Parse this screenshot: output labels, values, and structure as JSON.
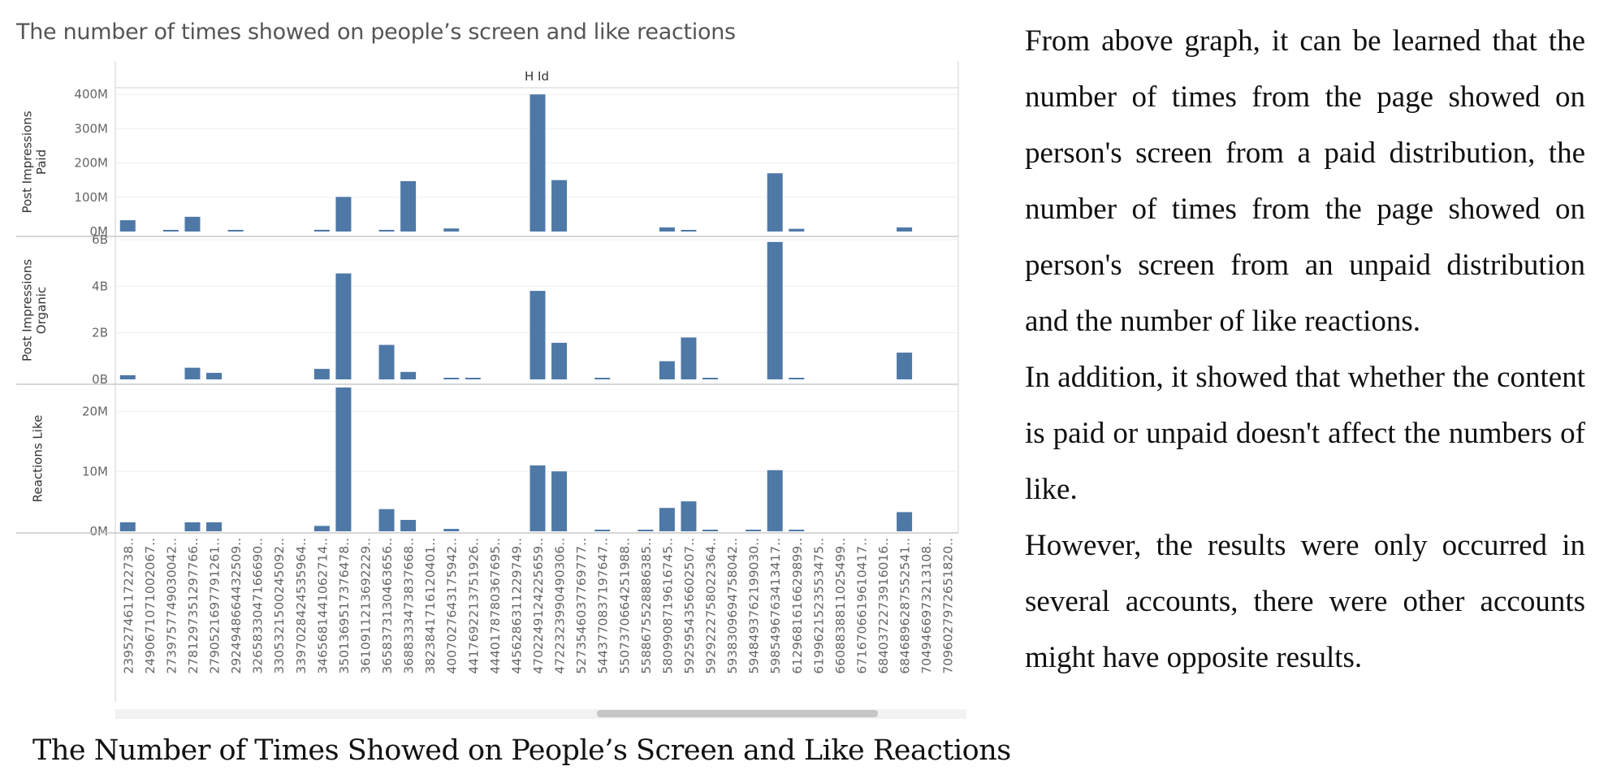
{
  "chart_data": {
    "type": "bar",
    "title": "The number of times showed on people’s screen and like reactions",
    "column_header": "H Id",
    "categories": [
      "2395274611722738..",
      "2490671071002067..",
      "2739757749030042..",
      "2781297351297766..",
      "2790521697791261..",
      "2924948664432509..",
      "3265833047166690..",
      "3305321500245092..",
      "3397028424535964..",
      "3465681441062714..",
      "3501369517376478..",
      "3610911213692229..",
      "3658373130463656..",
      "3688333473837668..",
      "3823841716120401..",
      "4007027643175942..",
      "4417692213751926..",
      "4440178780367695..",
      "4456286311229749..",
      "4702249124225659..",
      "4722323990490306..",
      "5273546037769777..",
      "5443770837197647..",
      "5507370664251988..",
      "5588675528886385..",
      "5809908719616745..",
      "5925954356602507..",
      "5929222758022364..",
      "5938309694758042..",
      "5948493762199030..",
      "5985496763413417..",
      "6129681616629899..",
      "6199621523553475..",
      "6608838811025499..",
      "6716706619610417..",
      "6840372273916016..",
      "6846896287552541..",
      "7049466973213108..",
      "7096027972651820.."
    ],
    "panels": [
      {
        "ylabel": "Post Impressions\nPaid",
        "ylim": [
          0,
          410000000
        ],
        "ticks": [
          {
            "value": 0,
            "label": "0M"
          },
          {
            "value": 100000000,
            "label": "100M"
          },
          {
            "value": 200000000,
            "label": "200M"
          },
          {
            "value": 300000000,
            "label": "300M"
          },
          {
            "value": 400000000,
            "label": "400M"
          }
        ],
        "values": [
          33000000,
          0,
          3000000,
          43000000,
          0,
          3000000,
          0,
          0,
          0,
          5000000,
          101000000,
          0,
          3000000,
          147000000,
          0,
          9000000,
          0,
          0,
          0,
          400000000,
          150000000,
          0,
          0,
          0,
          0,
          12000000,
          3000000,
          0,
          0,
          0,
          170000000,
          8000000,
          0,
          0,
          0,
          0,
          12000000,
          0,
          0
        ]
      },
      {
        "ylabel": "Post Impressions\nOrganic",
        "ylim": [
          0,
          6000000000
        ],
        "ticks": [
          {
            "value": 0,
            "label": "0B"
          },
          {
            "value": 2000000000,
            "label": "2B"
          },
          {
            "value": 4000000000,
            "label": "4B"
          },
          {
            "value": 6000000000,
            "label": "6B"
          }
        ],
        "values": [
          180000000,
          0,
          0,
          500000000,
          280000000,
          0,
          0,
          0,
          0,
          450000000,
          4550000000,
          0,
          1480000000,
          320000000,
          0,
          70000000,
          40000000,
          0,
          0,
          3800000000,
          1570000000,
          0,
          40000000,
          0,
          0,
          780000000,
          1800000000,
          30000000,
          0,
          0,
          5900000000,
          40000000,
          0,
          0,
          0,
          0,
          1150000000,
          0,
          0
        ]
      },
      {
        "ylabel": "Reactions Like",
        "ylim": [
          0,
          24000000
        ],
        "ticks": [
          {
            "value": 0,
            "label": "0M"
          },
          {
            "value": 10000000,
            "label": "10M"
          },
          {
            "value": 20000000,
            "label": "20M"
          }
        ],
        "values": [
          1500000,
          0,
          0,
          1500000,
          1500000,
          0,
          0,
          0,
          0,
          900000,
          24000000,
          0,
          3700000,
          1900000,
          0,
          400000,
          0,
          0,
          0,
          11000000,
          10000000,
          0,
          150000,
          0,
          150000,
          3900000,
          5000000,
          150000,
          0,
          150000,
          10200000,
          150000,
          0,
          0,
          0,
          0,
          3200000,
          0,
          0
        ]
      }
    ],
    "bar_color": "#4e79a7",
    "grid": true
  },
  "caption": "The Number of Times Showed on People’s Screen and Like Reactions",
  "paragraphs": [
    "From above graph, it can be learned that the number of times from the page showed on person's screen from a paid distribution, the number of times from the page showed on person's screen from an unpaid distribution and the number of like reactions.",
    "In addition, it showed that whether the content is paid or unpaid doesn't affect the numbers of like.",
    "However, the results were only occurred in several accounts, there were other accounts might have opposite results."
  ]
}
